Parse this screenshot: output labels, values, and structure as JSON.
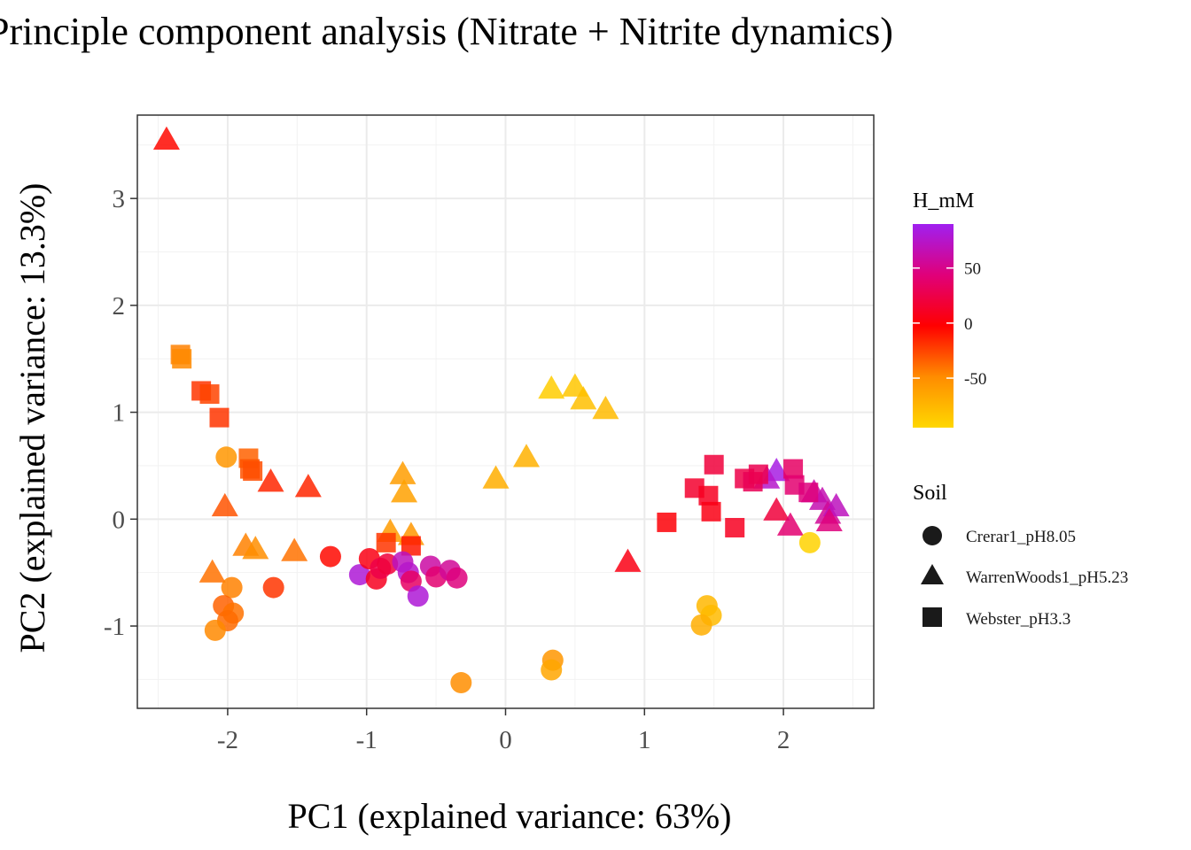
{
  "chart_data": {
    "type": "scatter",
    "title": "Principle component analysis (Nitrate + Nitrite dynamics)",
    "xlabel": "PC1 (explained variance: 63%)",
    "ylabel": "PC2 (explained variance: 13.3%)",
    "xlim": [
      -2.65,
      2.65
    ],
    "ylim": [
      -1.77,
      3.78
    ],
    "xticks": [
      -2,
      -1,
      0,
      1,
      2
    ],
    "yticks": [
      -1,
      0,
      1,
      2,
      3
    ],
    "xtick_labels": [
      "-2",
      "-1",
      "0",
      "1",
      "2"
    ],
    "ytick_labels": [
      "-1",
      "0",
      "1",
      "2",
      "3"
    ],
    "grid": true,
    "color_legend": {
      "title": "H_mM",
      "range": [
        -95,
        90
      ],
      "ticks": [
        50,
        0,
        -50
      ],
      "tick_labels": [
        "50",
        "0",
        "-50"
      ],
      "colors": [
        "#ffd700",
        "#ff8c00",
        "#ff0000",
        "#e0007a",
        "#a020f0"
      ]
    },
    "shape_legend": {
      "title": "Soil",
      "entries": [
        {
          "label": "Crerar1_pH8.05",
          "shape": "circle"
        },
        {
          "label": "WarrenWoods1_pH5.23",
          "shape": "triangle"
        },
        {
          "label": "Webster_pH3.3",
          "shape": "square"
        }
      ]
    },
    "points": [
      {
        "x": -2.44,
        "y": 3.55,
        "soil": "WarrenWoods1_pH5.23",
        "h": -5
      },
      {
        "x": -2.02,
        "y": 0.12,
        "soil": "WarrenWoods1_pH5.23",
        "h": -30
      },
      {
        "x": -1.87,
        "y": -0.25,
        "soil": "WarrenWoods1_pH5.23",
        "h": -45
      },
      {
        "x": -1.8,
        "y": -0.28,
        "soil": "WarrenWoods1_pH5.23",
        "h": -50
      },
      {
        "x": -2.11,
        "y": -0.5,
        "soil": "WarrenWoods1_pH5.23",
        "h": -40
      },
      {
        "x": -1.69,
        "y": 0.35,
        "soil": "WarrenWoods1_pH5.23",
        "h": -15
      },
      {
        "x": -1.42,
        "y": 0.3,
        "soil": "WarrenWoods1_pH5.23",
        "h": -15
      },
      {
        "x": -1.52,
        "y": -0.3,
        "soil": "WarrenWoods1_pH5.23",
        "h": -40
      },
      {
        "x": -0.74,
        "y": 0.42,
        "soil": "WarrenWoods1_pH5.23",
        "h": -60
      },
      {
        "x": -0.73,
        "y": 0.25,
        "soil": "WarrenWoods1_pH5.23",
        "h": -62
      },
      {
        "x": -0.83,
        "y": -0.12,
        "soil": "WarrenWoods1_pH5.23",
        "h": -58
      },
      {
        "x": -0.68,
        "y": -0.15,
        "soil": "WarrenWoods1_pH5.23",
        "h": -55
      },
      {
        "x": -0.07,
        "y": 0.38,
        "soil": "WarrenWoods1_pH5.23",
        "h": -70
      },
      {
        "x": 0.15,
        "y": 0.58,
        "soil": "WarrenWoods1_pH5.23",
        "h": -72
      },
      {
        "x": 0.33,
        "y": 1.22,
        "soil": "WarrenWoods1_pH5.23",
        "h": -88
      },
      {
        "x": 0.5,
        "y": 1.24,
        "soil": "WarrenWoods1_pH5.23",
        "h": -85
      },
      {
        "x": 0.56,
        "y": 1.12,
        "soil": "WarrenWoods1_pH5.23",
        "h": -80
      },
      {
        "x": 0.72,
        "y": 1.03,
        "soil": "WarrenWoods1_pH5.23",
        "h": -78
      },
      {
        "x": 0.88,
        "y": -0.4,
        "soil": "WarrenWoods1_pH5.23",
        "h": 5
      },
      {
        "x": 1.95,
        "y": 0.08,
        "soil": "WarrenWoods1_pH5.23",
        "h": 20
      },
      {
        "x": 2.05,
        "y": -0.06,
        "soil": "WarrenWoods1_pH5.23",
        "h": 40
      },
      {
        "x": 1.95,
        "y": 0.45,
        "soil": "WarrenWoods1_pH5.23",
        "h": 85
      },
      {
        "x": 1.88,
        "y": 0.38,
        "soil": "WarrenWoods1_pH5.23",
        "h": 75
      },
      {
        "x": 2.22,
        "y": 0.25,
        "soil": "WarrenWoods1_pH5.23",
        "h": 60
      },
      {
        "x": 2.28,
        "y": 0.18,
        "soil": "WarrenWoods1_pH5.23",
        "h": 65
      },
      {
        "x": 2.32,
        "y": 0.05,
        "soil": "WarrenWoods1_pH5.23",
        "h": 55
      },
      {
        "x": 2.38,
        "y": 0.12,
        "soil": "WarrenWoods1_pH5.23",
        "h": 70
      },
      {
        "x": 2.33,
        "y": -0.02,
        "soil": "WarrenWoods1_pH5.23",
        "h": 45
      },
      {
        "x": -2.34,
        "y": 1.54,
        "soil": "Webster_pH3.3",
        "h": -45
      },
      {
        "x": -2.33,
        "y": 1.5,
        "soil": "Webster_pH3.3",
        "h": -48
      },
      {
        "x": -2.19,
        "y": 1.2,
        "soil": "Webster_pH3.3",
        "h": -20
      },
      {
        "x": -2.13,
        "y": 1.17,
        "soil": "Webster_pH3.3",
        "h": -25
      },
      {
        "x": -2.06,
        "y": 0.95,
        "soil": "Webster_pH3.3",
        "h": -20
      },
      {
        "x": -1.85,
        "y": 0.57,
        "soil": "Webster_pH3.3",
        "h": -35
      },
      {
        "x": -1.84,
        "y": 0.47,
        "soil": "Webster_pH3.3",
        "h": -30
      },
      {
        "x": -1.82,
        "y": 0.45,
        "soil": "Webster_pH3.3",
        "h": -28
      },
      {
        "x": -0.86,
        "y": -0.22,
        "soil": "Webster_pH3.3",
        "h": -20
      },
      {
        "x": -0.68,
        "y": -0.25,
        "soil": "Webster_pH3.3",
        "h": -10
      },
      {
        "x": 1.16,
        "y": -0.03,
        "soil": "Webster_pH3.3",
        "h": 0
      },
      {
        "x": 1.36,
        "y": 0.29,
        "soil": "Webster_pH3.3",
        "h": 15
      },
      {
        "x": 1.46,
        "y": 0.22,
        "soil": "Webster_pH3.3",
        "h": 10
      },
      {
        "x": 1.5,
        "y": 0.51,
        "soil": "Webster_pH3.3",
        "h": 20
      },
      {
        "x": 1.48,
        "y": 0.07,
        "soil": "Webster_pH3.3",
        "h": 5
      },
      {
        "x": 1.65,
        "y": -0.08,
        "soil": "Webster_pH3.3",
        "h": 10
      },
      {
        "x": 1.72,
        "y": 0.38,
        "soil": "Webster_pH3.3",
        "h": 25
      },
      {
        "x": 1.78,
        "y": 0.35,
        "soil": "Webster_pH3.3",
        "h": 30
      },
      {
        "x": 1.82,
        "y": 0.42,
        "soil": "Webster_pH3.3",
        "h": 28
      },
      {
        "x": 2.07,
        "y": 0.47,
        "soil": "Webster_pH3.3",
        "h": 35
      },
      {
        "x": 2.08,
        "y": 0.32,
        "soil": "Webster_pH3.3",
        "h": 40
      },
      {
        "x": 2.18,
        "y": 0.25,
        "soil": "Webster_pH3.3",
        "h": 45
      },
      {
        "x": -2.01,
        "y": 0.58,
        "soil": "Crerar1_pH8.05",
        "h": -55
      },
      {
        "x": -1.97,
        "y": -0.64,
        "soil": "Crerar1_pH8.05",
        "h": -45
      },
      {
        "x": -2.03,
        "y": -0.81,
        "soil": "Crerar1_pH8.05",
        "h": -35
      },
      {
        "x": -1.96,
        "y": -0.88,
        "soil": "Crerar1_pH8.05",
        "h": -40
      },
      {
        "x": -2.0,
        "y": -0.95,
        "soil": "Crerar1_pH8.05",
        "h": -38
      },
      {
        "x": -2.09,
        "y": -1.04,
        "soil": "Crerar1_pH8.05",
        "h": -48
      },
      {
        "x": -1.67,
        "y": -0.64,
        "soil": "Crerar1_pH8.05",
        "h": -20
      },
      {
        "x": -1.26,
        "y": -0.35,
        "soil": "Crerar1_pH8.05",
        "h": -5
      },
      {
        "x": -1.05,
        "y": -0.52,
        "soil": "Crerar1_pH8.05",
        "h": 80
      },
      {
        "x": -0.98,
        "y": -0.37,
        "soil": "Crerar1_pH8.05",
        "h": 5
      },
      {
        "x": -0.93,
        "y": -0.56,
        "soil": "Crerar1_pH8.05",
        "h": 10
      },
      {
        "x": -0.9,
        "y": -0.46,
        "soil": "Crerar1_pH8.05",
        "h": 25
      },
      {
        "x": -0.85,
        "y": -0.42,
        "soil": "Crerar1_pH8.05",
        "h": 20
      },
      {
        "x": -0.74,
        "y": -0.4,
        "soil": "Crerar1_pH8.05",
        "h": 70
      },
      {
        "x": -0.7,
        "y": -0.5,
        "soil": "Crerar1_pH8.05",
        "h": 75
      },
      {
        "x": -0.68,
        "y": -0.58,
        "soil": "Crerar1_pH8.05",
        "h": 35
      },
      {
        "x": -0.63,
        "y": -0.72,
        "soil": "Crerar1_pH8.05",
        "h": 80
      },
      {
        "x": -0.54,
        "y": -0.44,
        "soil": "Crerar1_pH8.05",
        "h": 60
      },
      {
        "x": -0.5,
        "y": -0.54,
        "soil": "Crerar1_pH8.05",
        "h": 40
      },
      {
        "x": -0.4,
        "y": -0.48,
        "soil": "Crerar1_pH8.05",
        "h": 55
      },
      {
        "x": -0.35,
        "y": -0.55,
        "soil": "Crerar1_pH8.05",
        "h": 45
      },
      {
        "x": -0.32,
        "y": -1.53,
        "soil": "Crerar1_pH8.05",
        "h": -50
      },
      {
        "x": 0.34,
        "y": -1.32,
        "soil": "Crerar1_pH8.05",
        "h": -55
      },
      {
        "x": 0.33,
        "y": -1.41,
        "soil": "Crerar1_pH8.05",
        "h": -65
      },
      {
        "x": 1.45,
        "y": -0.81,
        "soil": "Crerar1_pH8.05",
        "h": -75
      },
      {
        "x": 1.48,
        "y": -0.9,
        "soil": "Crerar1_pH8.05",
        "h": -78
      },
      {
        "x": 1.41,
        "y": -0.99,
        "soil": "Crerar1_pH8.05",
        "h": -70
      },
      {
        "x": 2.19,
        "y": -0.22,
        "soil": "Crerar1_pH8.05",
        "h": -92
      }
    ]
  }
}
